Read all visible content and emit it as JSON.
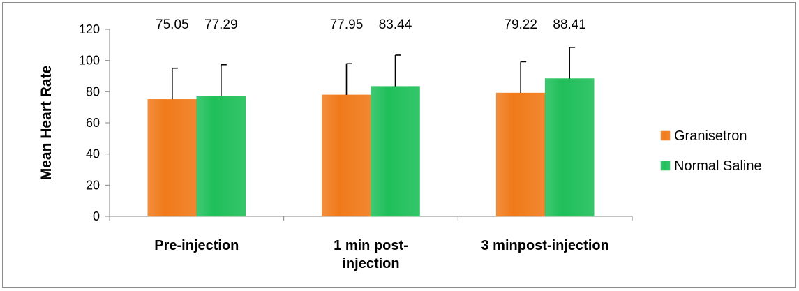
{
  "chart_data": {
    "type": "bar",
    "title": "",
    "xlabel": "",
    "ylabel": "Mean Heart Rate",
    "ylim": [
      0,
      120
    ],
    "yticks": [
      0,
      20,
      40,
      60,
      80,
      100,
      120
    ],
    "grid": false,
    "legend_position": "right",
    "categories": [
      [
        "Pre-injection"
      ],
      [
        "1 min post-",
        "injection"
      ],
      [
        "3 minpost-injection"
      ]
    ],
    "series": [
      {
        "name": "Granisetron",
        "color": "#f07a1a",
        "values": [
          75.05,
          77.95,
          79.22
        ],
        "error": [
          20,
          20,
          20
        ],
        "labels": [
          "75.05",
          "77.95",
          "79.22"
        ]
      },
      {
        "name": "Normal Saline",
        "color": "#1fbf5a",
        "values": [
          77.29,
          83.44,
          88.41
        ],
        "error": [
          20,
          20,
          20
        ],
        "labels": [
          "77.29",
          "83.44",
          "88.41"
        ]
      }
    ]
  }
}
